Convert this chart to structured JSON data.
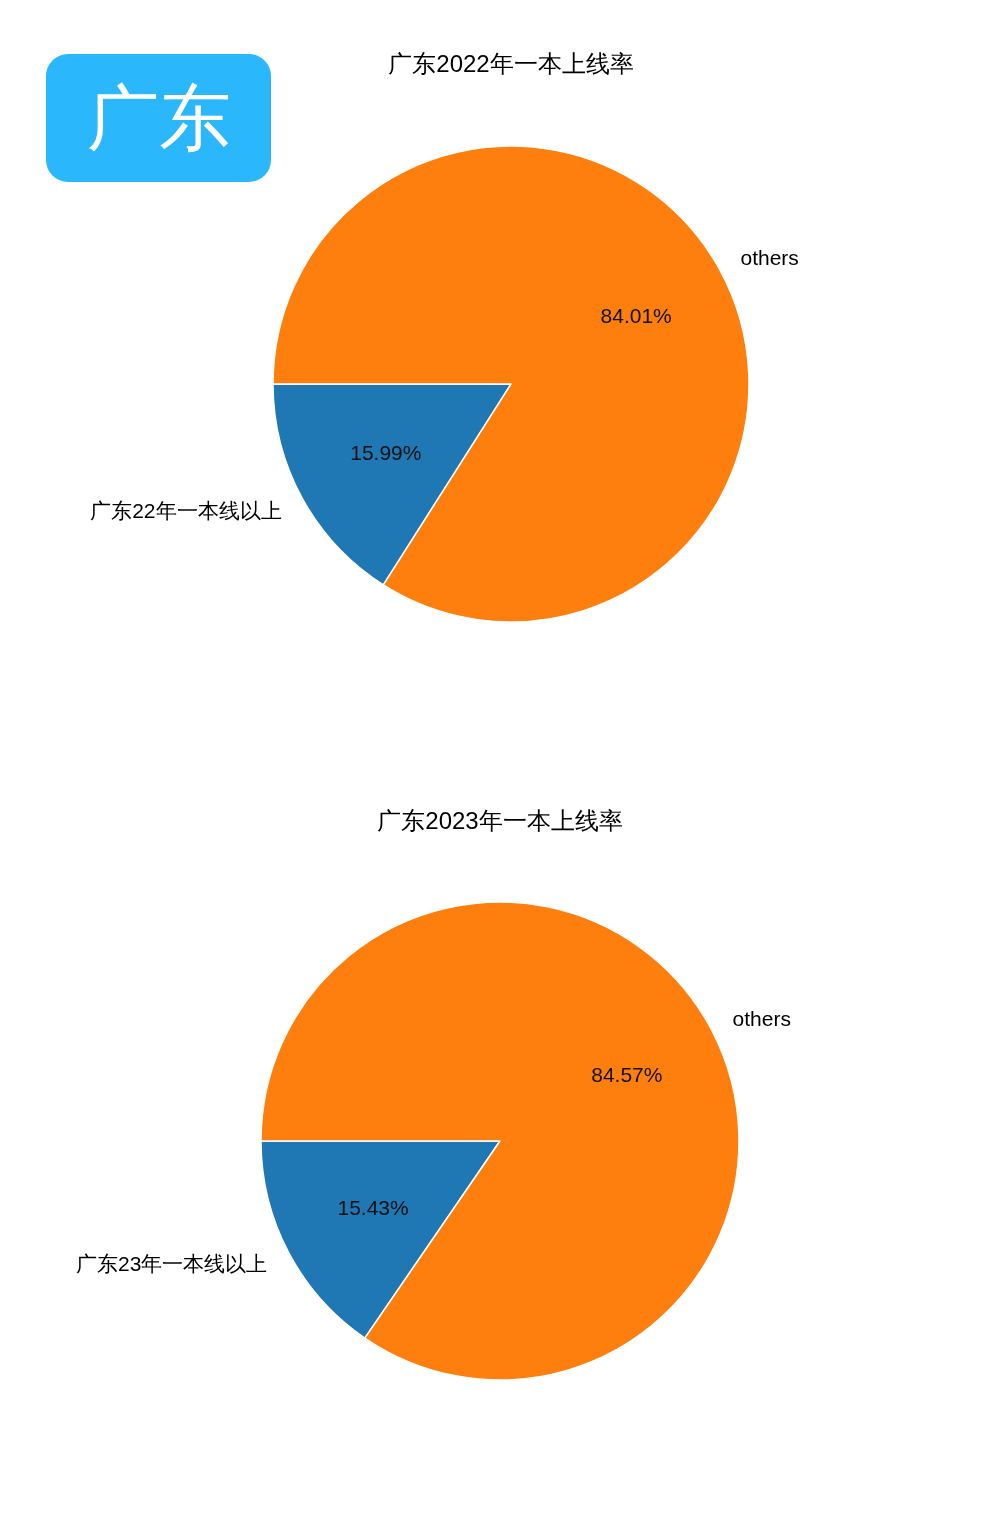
{
  "chart_data": [
    {
      "type": "pie",
      "title": "广东2022年一本上线率",
      "categories": [
        "广东22年一本线以上",
        "others"
      ],
      "values": [
        15.99,
        84.01
      ],
      "value_labels": [
        "15.99%",
        "84.01%"
      ],
      "colors": [
        "#1f77b4",
        "#ff7f0e"
      ],
      "annotations": [
        "广东"
      ]
    },
    {
      "type": "pie",
      "title": "广东2023年一本上线率",
      "categories": [
        "广东23年一本线以上",
        "others"
      ],
      "values": [
        15.43,
        84.57
      ],
      "value_labels": [
        "15.43%",
        "84.57%"
      ],
      "colors": [
        "#1f77b4",
        "#ff7f0e"
      ]
    }
  ]
}
